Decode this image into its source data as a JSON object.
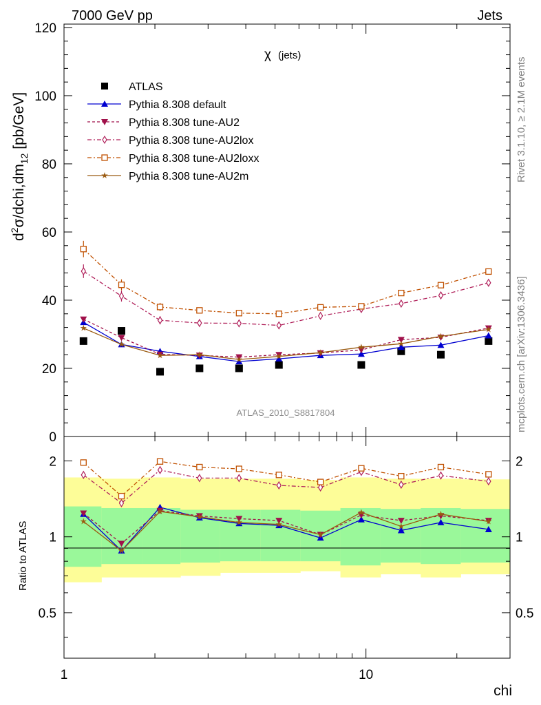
{
  "header": {
    "left": "7000 GeV pp",
    "right": "Jets"
  },
  "side_labels": {
    "rivet": "Rivet 3.1.10, ≥ 2.1M events",
    "url": "mcplots.cern.ch [arXiv:1306.3436]"
  },
  "plot_title": {
    "symbol": "χ",
    "text": "(jets)"
  },
  "watermark": "ATLAS_2010_S8817804",
  "chart_data": [
    {
      "type": "line",
      "title": "χ (jets)",
      "ylabel": "d²σ/dchi,dm₁₂ [pb/GeV]",
      "ylabel_parts": {
        "a": "d",
        "b": "2",
        "c": "σ/dchi,dm",
        "d": "12",
        "e": " [pb/GeV]"
      },
      "xlabel": "chi",
      "xscale": "log",
      "xlim": [
        1,
        30
      ],
      "ylim": [
        0,
        121
      ],
      "yticks": [
        0,
        20,
        40,
        60,
        80,
        100,
        120
      ],
      "xticks": [
        1,
        10
      ],
      "legend_position": "top-left",
      "x": [
        1.16,
        1.55,
        2.08,
        2.81,
        3.8,
        5.15,
        7.07,
        9.65,
        13.08,
        17.7,
        25.47
      ],
      "series": [
        {
          "name": "ATLAS",
          "color": "#000000",
          "marker": "square-filled",
          "style": "none",
          "values": [
            28,
            31,
            19,
            20,
            20,
            21,
            null,
            21,
            25,
            24,
            28
          ]
        },
        {
          "name": "Pythia 8.308 default",
          "color": "#0000d0",
          "marker": "triangle-up-filled",
          "style": "solid",
          "values": [
            33.5,
            27,
            25,
            23.5,
            22,
            22.8,
            23.8,
            24.2,
            26.2,
            26.8,
            29.6
          ]
        },
        {
          "name": "Pythia 8.308 tune-AU2",
          "color": "#a0104a",
          "marker": "triangle-down-filled",
          "style": "dashed",
          "values": [
            34.4,
            29,
            24.1,
            23.8,
            23.3,
            24.0,
            24.5,
            25.4,
            28.4,
            29.1,
            31.8
          ]
        },
        {
          "name": "Pythia 8.308 tune-AU2lox",
          "color": "#b0205a",
          "marker": "diamond-open",
          "style": "dashdot",
          "values": [
            48.5,
            41.2,
            34.1,
            33.3,
            33.2,
            32.6,
            35.4,
            37.4,
            39.0,
            41.4,
            45.1
          ]
        },
        {
          "name": "Pythia 8.308 tune-AU2loxx",
          "color": "#c05000",
          "marker": "square-open",
          "style": "dashdot",
          "values": [
            55.0,
            44.5,
            38.0,
            37.0,
            36.2,
            36.0,
            37.9,
            38.2,
            42.1,
            44.4,
            48.4
          ]
        },
        {
          "name": "Pythia 8.308 tune-AU2m",
          "color": "#9a5a10",
          "marker": "star",
          "style": "solid",
          "values": [
            31.8,
            27.0,
            23.8,
            24.0,
            22.6,
            23.5,
            24.6,
            26.2,
            27.2,
            29.4,
            31.4
          ]
        }
      ],
      "error_bars": {
        "Pythia 8.308 tune-AU2lox": [
          2.0,
          1.6,
          1.2,
          0.8,
          0.8,
          0.8,
          0.8,
          0.8,
          0.8,
          0.8,
          0.8
        ],
        "Pythia 8.308 tune-AU2loxx": [
          2.4,
          1.6,
          1.2,
          0.8,
          0.8,
          0.8,
          0.8,
          0.8,
          0.8,
          0.8,
          0.8
        ]
      }
    },
    {
      "type": "line",
      "ylabel": "Ratio to ATLAS",
      "xlabel": "chi",
      "xscale": "log",
      "yscale": "log",
      "xlim": [
        1,
        30
      ],
      "ylim": [
        0.33,
        2.5
      ],
      "yticks": [
        0.5,
        1,
        2
      ],
      "reference_line": 1,
      "x": [
        1.16,
        1.55,
        2.08,
        2.81,
        3.8,
        5.15,
        7.07,
        9.65,
        13.08,
        17.7,
        25.47
      ],
      "band_edges": [
        1,
        1.33,
        1.81,
        2.43,
        3.29,
        4.47,
        6.06,
        8.23,
        11.18,
        15.18,
        20.6,
        30
      ],
      "yellow_band": {
        "lo": [
          0.66,
          0.69,
          0.69,
          0.7,
          0.72,
          0.72,
          0.73,
          0.69,
          0.71,
          0.69,
          0.71
        ],
        "hi": [
          1.72,
          1.7,
          1.72,
          1.7,
          1.7,
          1.7,
          1.68,
          1.72,
          1.7,
          1.7,
          1.69
        ]
      },
      "green_band": {
        "lo": [
          0.76,
          0.78,
          0.78,
          0.79,
          0.8,
          0.8,
          0.8,
          0.77,
          0.79,
          0.78,
          0.79
        ],
        "hi": [
          1.32,
          1.3,
          1.3,
          1.28,
          1.28,
          1.28,
          1.27,
          1.3,
          1.29,
          1.3,
          1.29
        ]
      },
      "series": [
        {
          "name": "Pythia 8.308 default",
          "color": "#0000d0",
          "marker": "triangle-up-filled",
          "style": "solid",
          "values": [
            1.23,
            0.88,
            1.31,
            1.19,
            1.13,
            1.11,
            0.99,
            1.17,
            1.06,
            1.14,
            1.07
          ]
        },
        {
          "name": "Pythia 8.308 tune-AU2",
          "color": "#a0104a",
          "marker": "triangle-down-filled",
          "style": "dashed",
          "values": [
            1.24,
            0.94,
            1.27,
            1.21,
            1.18,
            1.16,
            1.02,
            1.22,
            1.16,
            1.21,
            1.16
          ]
        },
        {
          "name": "Pythia 8.308 tune-AU2lox",
          "color": "#b0205a",
          "marker": "diamond-open",
          "style": "dashdot",
          "values": [
            1.76,
            1.36,
            1.84,
            1.71,
            1.71,
            1.6,
            1.57,
            1.81,
            1.61,
            1.75,
            1.66
          ]
        },
        {
          "name": "Pythia 8.308 tune-AU2loxx",
          "color": "#c05000",
          "marker": "square-open",
          "style": "dashdot",
          "values": [
            1.97,
            1.45,
            1.99,
            1.89,
            1.86,
            1.76,
            1.65,
            1.87,
            1.74,
            1.89,
            1.77
          ]
        },
        {
          "name": "Pythia 8.308 tune-AU2m",
          "color": "#9a5a10",
          "marker": "star",
          "style": "solid",
          "values": [
            1.15,
            0.88,
            1.26,
            1.2,
            1.14,
            1.12,
            1.02,
            1.25,
            1.1,
            1.23,
            1.15
          ]
        }
      ]
    }
  ]
}
